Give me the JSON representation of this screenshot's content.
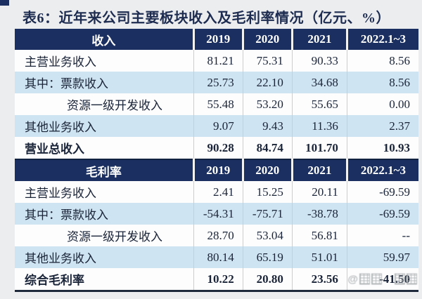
{
  "title": "表6：近年来公司主要板块收入及毛利率情况（亿元、%）",
  "colors": {
    "header_bg": "#1b3060",
    "header_text": "#ffffff",
    "row_shade": "#cfe4f2",
    "row_white": "#fdfdfe",
    "text": "#1a2438",
    "title": "#1d2c50",
    "dark_line": "#1f2a3c",
    "grid": "#c9ced2",
    "page_bg": "#ecedee"
  },
  "watermark": {
    "symbol": "@",
    "icon": "paw-icon"
  },
  "chart_data": {
    "type": "table",
    "title": "表6：近年来公司主要板块收入及毛利率情况（亿元、%）",
    "years": [
      "2019",
      "2020",
      "2021",
      "2022.1~3"
    ],
    "sections": [
      {
        "header_label": "收入",
        "rows": [
          {
            "label": "主营业务收入",
            "indent": 0,
            "shade": false,
            "bold": false,
            "values": [
              "81.21",
              "75.31",
              "90.33",
              "8.56"
            ]
          },
          {
            "label": "其中：票款收入",
            "indent": 0,
            "shade": true,
            "bold": false,
            "values": [
              "25.73",
              "22.10",
              "34.68",
              "8.56"
            ]
          },
          {
            "label": "资源一级开发收入",
            "indent": 1,
            "shade": false,
            "bold": false,
            "values": [
              "55.48",
              "53.20",
              "55.65",
              "0.00"
            ]
          },
          {
            "label": "其他业务收入",
            "indent": 0,
            "shade": true,
            "bold": false,
            "values": [
              "9.07",
              "9.43",
              "11.36",
              "2.37"
            ]
          },
          {
            "label": "营业总收入",
            "indent": 0,
            "shade": false,
            "bold": true,
            "values": [
              "90.28",
              "84.74",
              "101.70",
              "10.93"
            ]
          }
        ]
      },
      {
        "header_label": "毛利率",
        "rows": [
          {
            "label": "主营业务收入",
            "indent": 0,
            "shade": false,
            "bold": false,
            "values": [
              "2.41",
              "15.25",
              "20.11",
              "-69.59"
            ]
          },
          {
            "label": "其中：票款收入",
            "indent": 0,
            "shade": true,
            "bold": false,
            "values": [
              "-54.31",
              "-75.71",
              "-38.78",
              "-69.59"
            ]
          },
          {
            "label": "资源一级开发收入",
            "indent": 1,
            "shade": false,
            "bold": false,
            "values": [
              "28.70",
              "53.04",
              "56.81",
              "--"
            ]
          },
          {
            "label": "其他业务收入",
            "indent": 0,
            "shade": true,
            "bold": false,
            "values": [
              "80.14",
              "65.19",
              "51.01",
              "59.97"
            ]
          },
          {
            "label": "综合毛利率",
            "indent": 0,
            "shade": false,
            "bold": true,
            "values": [
              "10.22",
              "20.80",
              "23.56",
              "-41.50"
            ],
            "watermark_last": true
          }
        ]
      }
    ]
  }
}
